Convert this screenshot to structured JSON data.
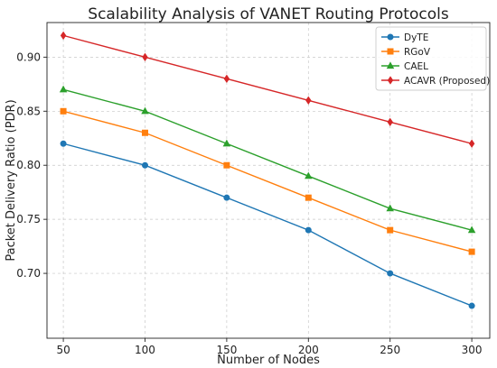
{
  "chart_data": {
    "type": "line",
    "title": "Scalability Analysis of VANET Routing Protocols",
    "xlabel": "Number of Nodes",
    "ylabel": "Packet Delivery Ratio (PDR)",
    "x": [
      50,
      100,
      150,
      200,
      250,
      300
    ],
    "x_ticks": [
      "50",
      "100",
      "150",
      "200",
      "250",
      "300"
    ],
    "xlim": [
      40,
      311
    ],
    "ylim": [
      0.64,
      0.932
    ],
    "y_ticks": [
      "0.70",
      "0.75",
      "0.80",
      "0.85",
      "0.90"
    ],
    "grid": true,
    "legend_position": "top-right",
    "series": [
      {
        "name": "DyTE",
        "values": [
          0.82,
          0.8,
          0.77,
          0.74,
          0.7,
          0.67
        ],
        "color": "#1f77b4",
        "marker": "circle"
      },
      {
        "name": "RGoV",
        "values": [
          0.85,
          0.83,
          0.8,
          0.77,
          0.74,
          0.72
        ],
        "color": "#ff7f0e",
        "marker": "square"
      },
      {
        "name": "CAEL",
        "values": [
          0.87,
          0.85,
          0.82,
          0.79,
          0.76,
          0.74
        ],
        "color": "#2ca02c",
        "marker": "triangle"
      },
      {
        "name": "ACAVR (Proposed)",
        "values": [
          0.92,
          0.9,
          0.88,
          0.86,
          0.84,
          0.82
        ],
        "color": "#d62728",
        "marker": "diamond"
      }
    ]
  }
}
